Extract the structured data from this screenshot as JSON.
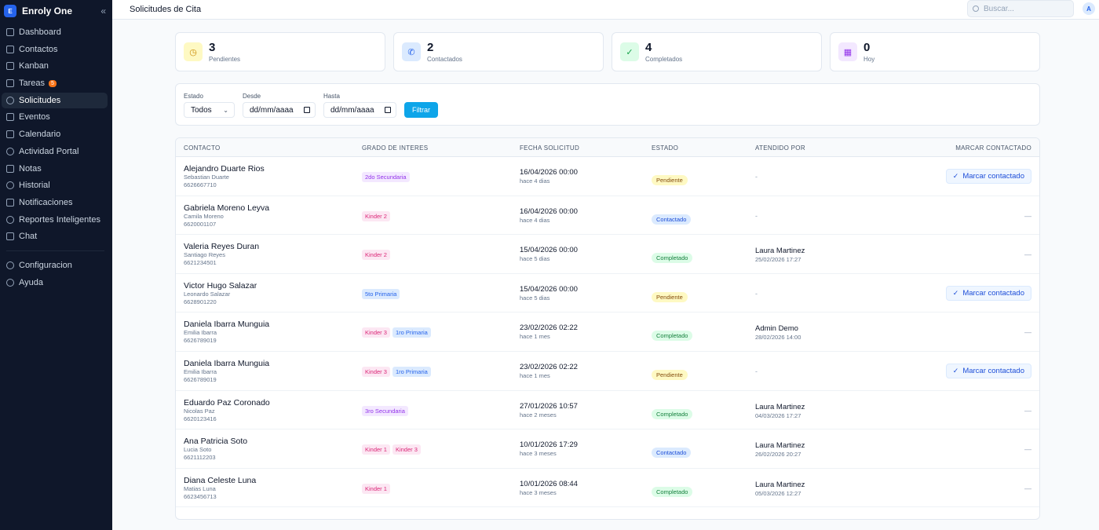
{
  "app": {
    "name": "Enroly One",
    "logo_letter": "E"
  },
  "sidebar": {
    "items": [
      {
        "label": "Dashboard"
      },
      {
        "label": "Contactos"
      },
      {
        "label": "Kanban"
      },
      {
        "label": "Tareas",
        "badge": "5"
      },
      {
        "label": "Solicitudes",
        "active": true
      },
      {
        "label": "Eventos"
      },
      {
        "label": "Calendario"
      },
      {
        "label": "Actividad Portal"
      },
      {
        "label": "Notas"
      },
      {
        "label": "Historial"
      },
      {
        "label": "Notificaciones"
      },
      {
        "label": "Reportes Inteligentes"
      },
      {
        "label": "Chat"
      }
    ],
    "bottom_items": [
      {
        "label": "Configuracion"
      },
      {
        "label": "Ayuda"
      }
    ]
  },
  "header": {
    "title": "Solicitudes de Cita",
    "search_placeholder": "Buscar...",
    "avatar_letter": "A"
  },
  "stats": [
    {
      "value": "3",
      "label": "Pendientes",
      "icon": "clock-icon",
      "color": "#ca8a04",
      "bg": "#fef9c3"
    },
    {
      "value": "2",
      "label": "Contactados",
      "icon": "phone-icon",
      "color": "#2563eb",
      "bg": "#dbeafe"
    },
    {
      "value": "4",
      "label": "Completados",
      "icon": "check-circle-icon",
      "color": "#16a34a",
      "bg": "#dcfce7"
    },
    {
      "value": "0",
      "label": "Hoy",
      "icon": "calendar-icon",
      "color": "#9333ea",
      "bg": "#f3e8ff"
    }
  ],
  "filters": {
    "estado_label": "Estado",
    "estado_value": "Todos",
    "desde_label": "Desde",
    "desde_value": "dd/mm/aaaa",
    "hasta_label": "Hasta",
    "hasta_value": "dd/mm/aaaa",
    "button_label": "Filtrar"
  },
  "table": {
    "columns": {
      "contacto": "CONTACTO",
      "grado": "GRADO DE INTERES",
      "fecha": "FECHA SOLICITUD",
      "estado": "ESTADO",
      "atendido": "ATENDIDO POR",
      "marcar": "MARCAR CONTACTADO"
    },
    "mark_button_label": "Marcar contactado",
    "rows": [
      {
        "name": "Alejandro Duarte Rios",
        "student": "Sebastian Duarte",
        "phone": "6626667710",
        "grades": [
          {
            "label": "2do Secundaria",
            "color": "purple"
          }
        ],
        "date": "16/04/2026 00:00",
        "ago": "hace 4 dias",
        "status": "Pendiente",
        "status_class": "pendiente",
        "attended_by": "-",
        "attended_date": "",
        "action": "button"
      },
      {
        "name": "Gabriela Moreno Leyva",
        "student": "Camila Moreno",
        "phone": "6620001107",
        "grades": [
          {
            "label": "Kinder 2",
            "color": "pink"
          }
        ],
        "date": "16/04/2026 00:00",
        "ago": "hace 4 dias",
        "status": "Contactado",
        "status_class": "contactado",
        "attended_by": "-",
        "attended_date": "",
        "action": "—"
      },
      {
        "name": "Valeria Reyes Duran",
        "student": "Santiago Reyes",
        "phone": "6621234501",
        "grades": [
          {
            "label": "Kinder 2",
            "color": "pink"
          }
        ],
        "date": "15/04/2026 00:00",
        "ago": "hace 5 dias",
        "status": "Completado",
        "status_class": "completado",
        "attended_by": "Laura Martinez",
        "attended_date": "25/02/2026 17:27",
        "action": "—"
      },
      {
        "name": "Victor Hugo Salazar",
        "student": "Leonardo Salazar",
        "phone": "6628901220",
        "grades": [
          {
            "label": "5to Primaria",
            "color": "blue"
          }
        ],
        "date": "15/04/2026 00:00",
        "ago": "hace 5 dias",
        "status": "Pendiente",
        "status_class": "pendiente",
        "attended_by": "-",
        "attended_date": "",
        "action": "button"
      },
      {
        "name": "Daniela Ibarra Munguia",
        "student": "Emilia Ibarra",
        "phone": "6626789019",
        "grades": [
          {
            "label": "Kinder 3",
            "color": "pink"
          },
          {
            "label": "1ro Primaria",
            "color": "blue"
          }
        ],
        "date": "23/02/2026 02:22",
        "ago": "hace 1 mes",
        "status": "Completado",
        "status_class": "completado",
        "attended_by": "Admin Demo",
        "attended_date": "28/02/2026 14:00",
        "action": "—"
      },
      {
        "name": "Daniela Ibarra Munguia",
        "student": "Emilia Ibarra",
        "phone": "6626789019",
        "grades": [
          {
            "label": "Kinder 3",
            "color": "pink"
          },
          {
            "label": "1ro Primaria",
            "color": "blue"
          }
        ],
        "date": "23/02/2026 02:22",
        "ago": "hace 1 mes",
        "status": "Pendiente",
        "status_class": "pendiente",
        "attended_by": "-",
        "attended_date": "",
        "action": "button"
      },
      {
        "name": "Eduardo Paz Coronado",
        "student": "Nicolas Paz",
        "phone": "6620123416",
        "grades": [
          {
            "label": "3ro Secundaria",
            "color": "purple"
          }
        ],
        "date": "27/01/2026 10:57",
        "ago": "hace 2 meses",
        "status": "Completado",
        "status_class": "completado",
        "attended_by": "Laura Martinez",
        "attended_date": "04/03/2026 17:27",
        "action": "—"
      },
      {
        "name": "Ana Patricia Soto",
        "student": "Lucia Soto",
        "phone": "6621112203",
        "grades": [
          {
            "label": "Kinder 1",
            "color": "pink"
          },
          {
            "label": "Kinder 3",
            "color": "pink"
          }
        ],
        "date": "10/01/2026 17:29",
        "ago": "hace 3 meses",
        "status": "Contactado",
        "status_class": "contactado",
        "attended_by": "Laura Martinez",
        "attended_date": "26/02/2026 20:27",
        "action": "—"
      },
      {
        "name": "Diana Celeste Luna",
        "student": "Matias Luna",
        "phone": "6623456713",
        "grades": [
          {
            "label": "Kinder 1",
            "color": "pink"
          }
        ],
        "date": "10/01/2026 08:44",
        "ago": "hace 3 meses",
        "status": "Completado",
        "status_class": "completado",
        "attended_by": "Laura Martinez",
        "attended_date": "05/03/2026 12:27",
        "action": "—"
      }
    ]
  }
}
